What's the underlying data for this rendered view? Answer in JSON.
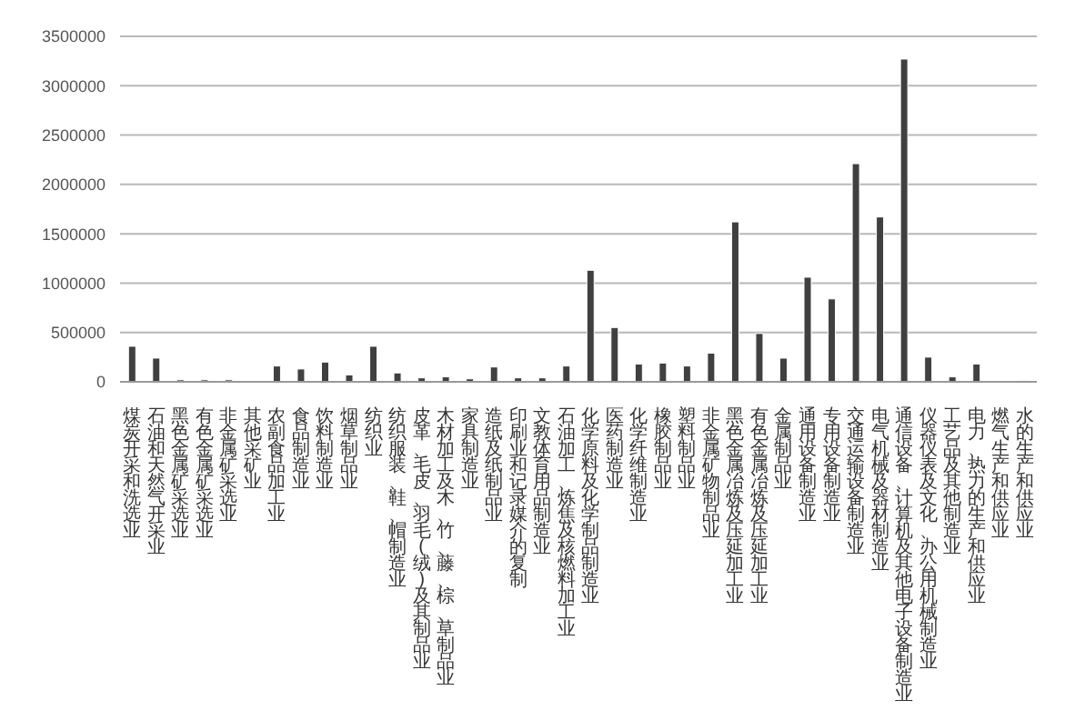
{
  "chart_data": {
    "type": "bar",
    "categories": [
      "煤炭开采和洗选业",
      "石油和天然气开采业",
      "黑色金属矿采选业",
      "有色金属矿采选业",
      "非金属矿采选业",
      "其他采矿业",
      "农副食品加工业",
      "食品制造业",
      "饮料制造业",
      "烟草制品业",
      "纺织业",
      "纺织服装、鞋、帽制造业",
      "皮革、毛皮、羽毛(绒)及其制品业",
      "木材加工及木、竹、藤、棕、草制品业",
      "家具制造业",
      "造纸及纸制品业",
      "印刷业和记录媒介的复制",
      "文教体育用品制造业",
      "石油加工、炼焦及核燃料加工业",
      "化学原料及化学制品制造业",
      "医药制造业",
      "化学纤维制造业",
      "橡胶制品业",
      "塑料制品业",
      "非金属矿物制品业",
      "黑色金属冶炼及压延加工业",
      "有色金属冶炼及压延加工业",
      "金属制品业",
      "通用设备制造业",
      "专用设备制造业",
      "交通运输设备制造业",
      "电气机械及器材制造业",
      "通信设备、计算机及其他电子设备制造业",
      "仪器仪表及文化、办公用机械制造业",
      "工艺品及其他制造业",
      "电力、热力的生产和供应业",
      "燃气生产和供应业",
      "水的生产和供应业"
    ],
    "values": [
      360000,
      240000,
      20000,
      20000,
      20000,
      0,
      160000,
      130000,
      200000,
      70000,
      360000,
      90000,
      40000,
      50000,
      30000,
      150000,
      40000,
      40000,
      160000,
      1130000,
      550000,
      180000,
      190000,
      160000,
      290000,
      1620000,
      490000,
      240000,
      1060000,
      840000,
      2210000,
      1670000,
      3270000,
      250000,
      50000,
      180000,
      0,
      10000
    ],
    "color": "#404040",
    "ylim": [
      0,
      3500000
    ],
    "yticks": [
      0,
      500000,
      1000000,
      1500000,
      2000000,
      2500000,
      3000000,
      3500000
    ],
    "grid": "y"
  }
}
